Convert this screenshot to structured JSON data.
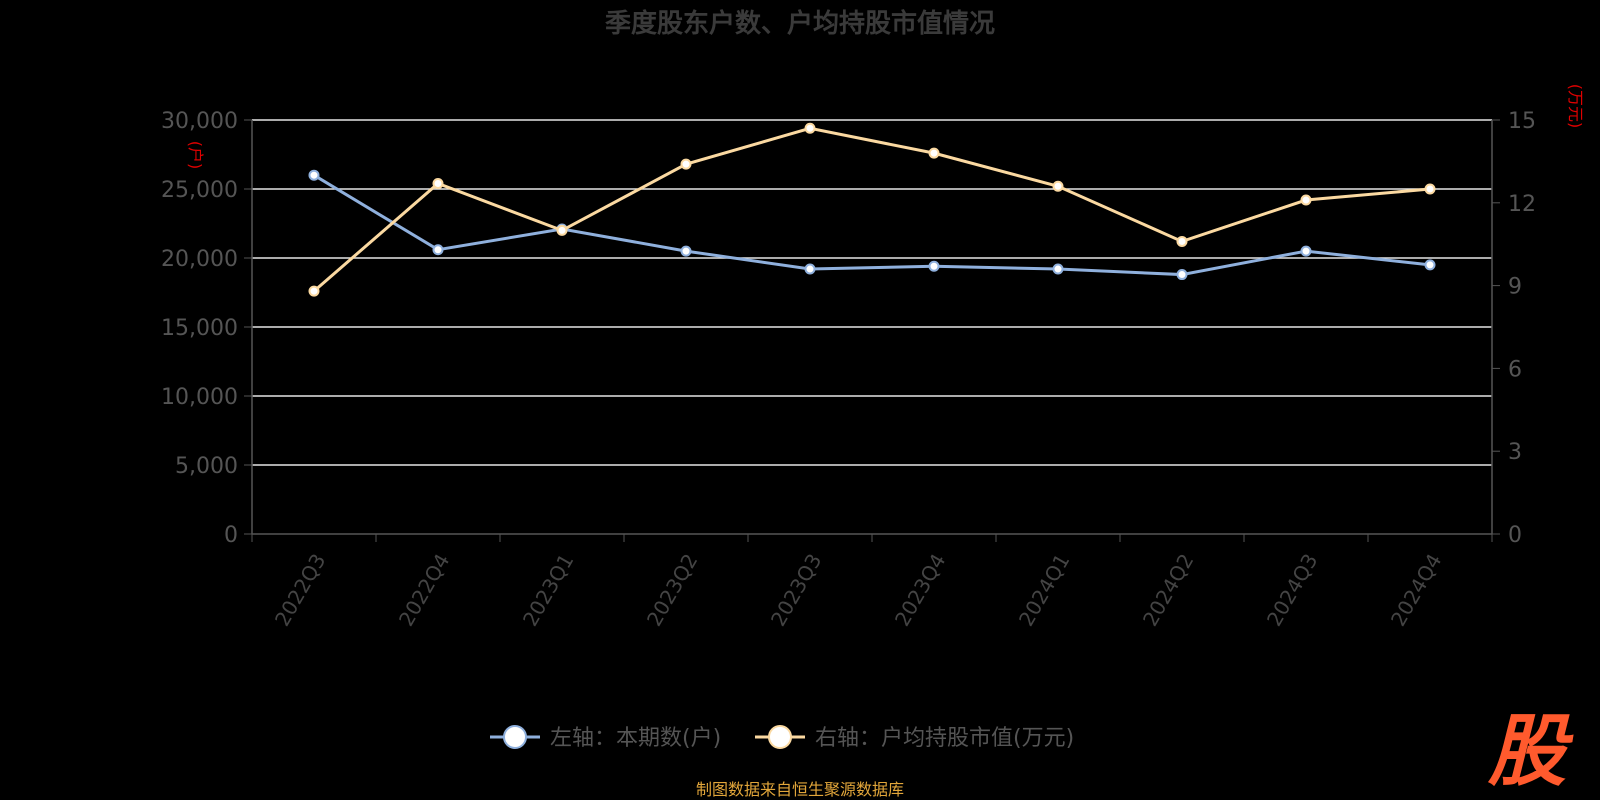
{
  "chart_data": {
    "type": "line",
    "title": "季度股东户数、户均持股市值情况",
    "categories": [
      "2022Q3",
      "2022Q4",
      "2023Q1",
      "2023Q2",
      "2023Q3",
      "2023Q4",
      "2024Q1",
      "2024Q2",
      "2024Q3",
      "2024Q4"
    ],
    "series": [
      {
        "name": "左轴：本期数(户)",
        "axis": "left",
        "color": "#8fb0dd",
        "values": [
          26000,
          20600,
          22100,
          20500,
          19200,
          19400,
          19200,
          18800,
          20500,
          19500
        ]
      },
      {
        "name": "右轴：户均持股市值(万元)",
        "axis": "right",
        "color": "#fbd9a1",
        "values": [
          8.8,
          12.7,
          11.0,
          13.4,
          14.7,
          13.8,
          12.6,
          10.6,
          12.1,
          12.5
        ]
      }
    ],
    "left_axis": {
      "min": 0,
      "max": 30000,
      "ticks": [
        "0",
        "5,000",
        "10,000",
        "15,000",
        "20,000",
        "25,000",
        "30,000"
      ],
      "unit": "(户)"
    },
    "right_axis": {
      "min": 0,
      "max": 15,
      "ticks": [
        "0",
        "3",
        "6",
        "9",
        "12",
        "15"
      ],
      "unit": "(万元)"
    },
    "grid": true,
    "legend_position": "bottom"
  },
  "source": "制图数据来自恒生聚源数据库",
  "logo": "股"
}
